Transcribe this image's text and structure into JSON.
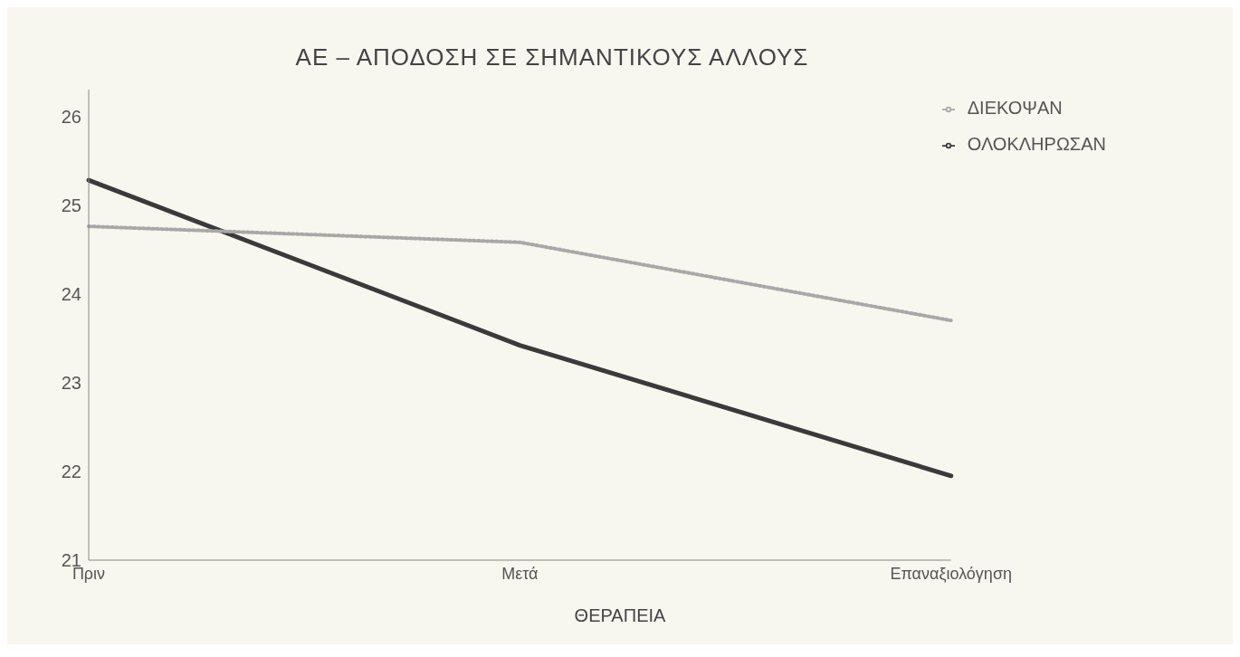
{
  "chart_data": {
    "type": "line",
    "title": "ΑΕ – ΑΠΟΔΟΣΗ ΣΕ ΣΗΜΑΝΤΙΚΟΥΣ ΑΛΛΟΥΣ",
    "xlabel": "ΘΕΡΑΠΕΙΑ",
    "categories": [
      "Πριν",
      "Μετά",
      "Επαναξιολόγηση"
    ],
    "series": [
      {
        "name": "ΟΛΟΚΛΗΡΩΣΑΝ",
        "color": "#3a3a3a",
        "line_style": "solid",
        "values": [
          25.28,
          23.42,
          21.95
        ]
      },
      {
        "name": "ΔΙΕΚΟΨΑΝ",
        "color": "#a8a8a8",
        "line_style": "dotted",
        "values": [
          24.76,
          24.58,
          23.7
        ]
      }
    ],
    "ylim": [
      21,
      26.3
    ],
    "yticks": [
      21,
      22,
      23,
      24,
      25,
      26
    ],
    "grid": false,
    "legend": "top right",
    "marker": "none"
  }
}
